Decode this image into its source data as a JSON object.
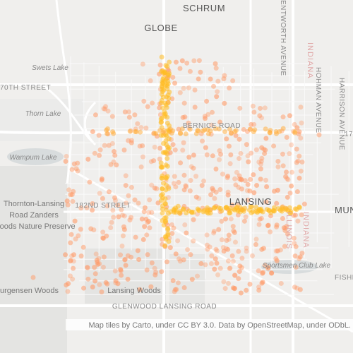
{
  "labels": {
    "schrum": "SCHRUM",
    "globe": "GLOBE",
    "swets_lake": "Swets Lake",
    "street_70th": "70TH STREET",
    "thorn_lake": "Thorn Lake",
    "bernice_road": "BERNICE ROAD",
    "wampum_lake": "Wampum Lake",
    "zanders": "Thornton-Lansing Road Zanders Woods Nature Preserve",
    "street_182nd": "182ND STREET",
    "lansing": "LANSING",
    "sportsmen": "Sportsmen Club Lake",
    "jurgensen": "urgensen Woods",
    "lansing_woods": "Lansing Woods",
    "glenwood": "GLENWOOD LANSING ROAD",
    "wentworth": "ENTWORTH AVENUE",
    "indiana_top": "INDIANA",
    "illinois": "ILLINOIS",
    "indiana_bottom": "INDIANA",
    "hohman": "HOHMAN AVENUE",
    "harrison": "HARRISON AVENUE",
    "mun": "MUN",
    "fisher": "FISHER",
    "n17": "17"
  },
  "attribution": "Map tiles by Carto, under CC BY 3.0. Data by OpenStreetMap, under ODbL."
}
